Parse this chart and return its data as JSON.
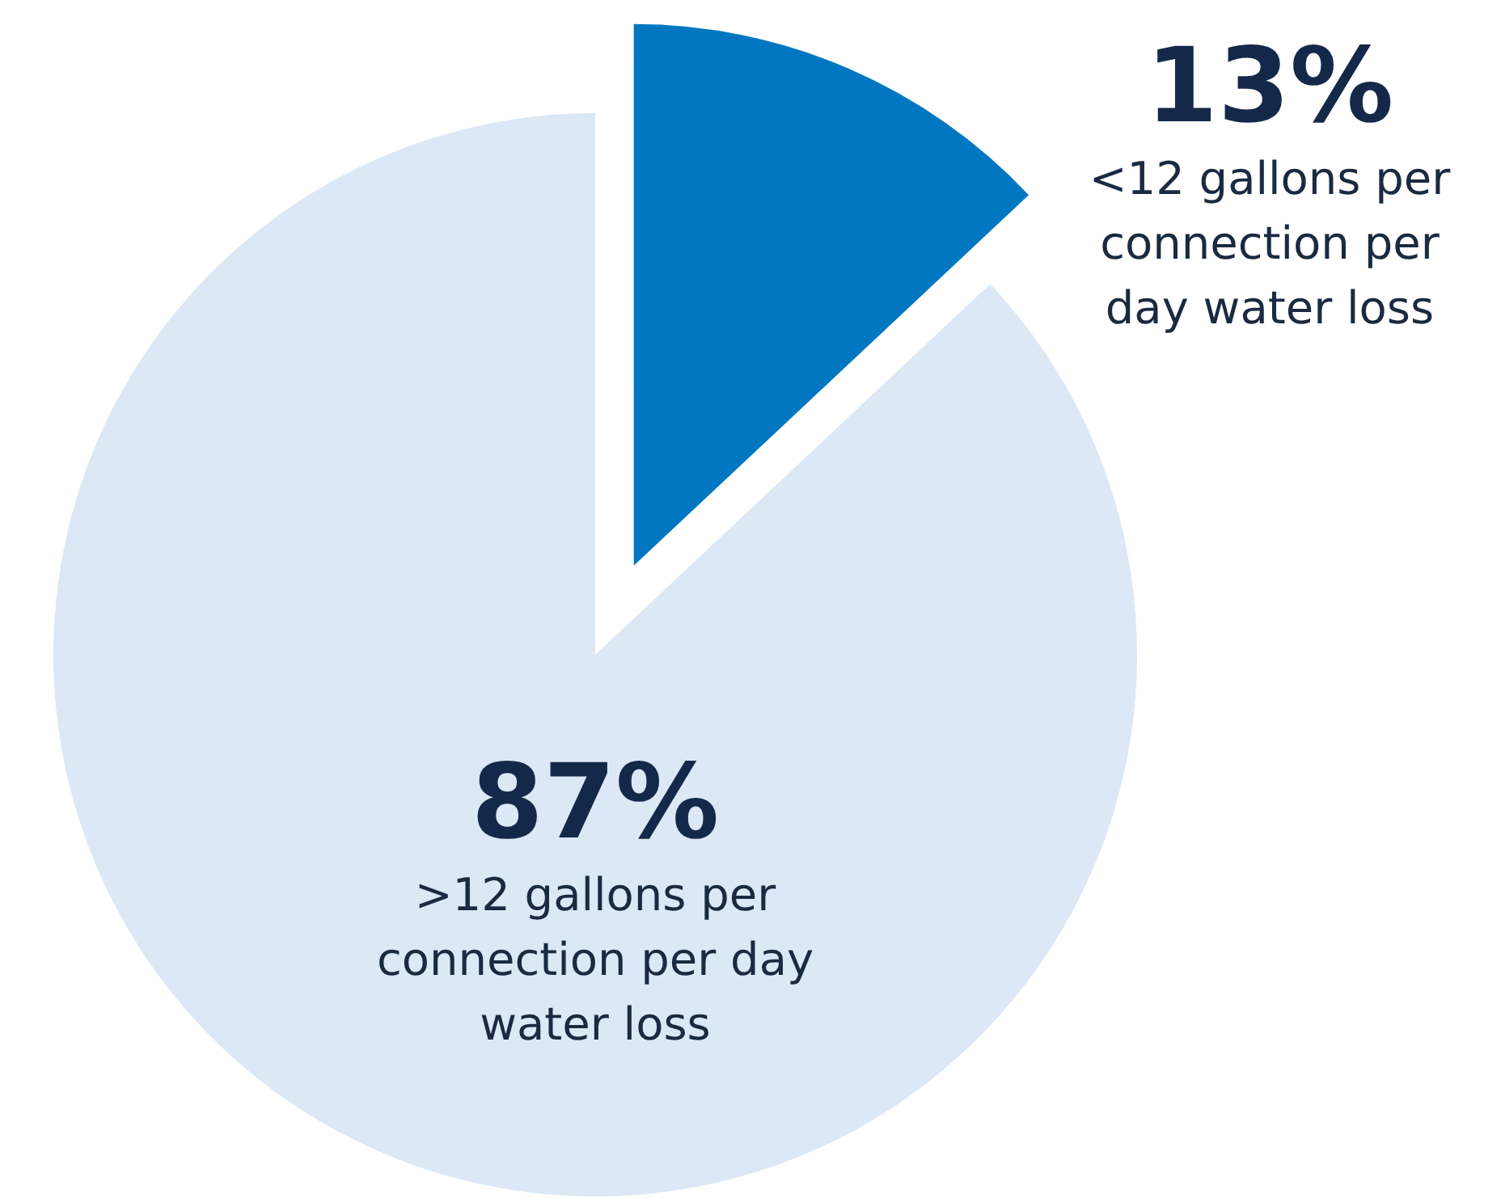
{
  "chart_data": {
    "type": "pie",
    "categories": [
      "<12 gallons per connection per day water loss",
      ">12 gallons per connection per day water loss"
    ],
    "values": [
      13,
      87
    ],
    "colors": [
      "#0077c0",
      "#dce8f5"
    ],
    "value_labels": [
      "13%",
      "87%"
    ]
  }
}
